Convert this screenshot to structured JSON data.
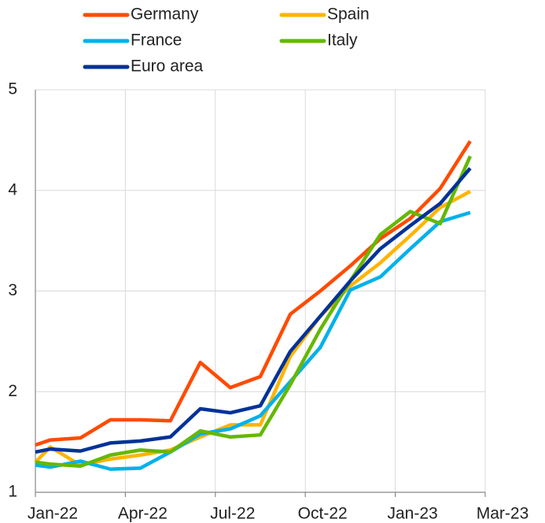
{
  "chart_data": {
    "type": "line",
    "x": [
      0,
      0.5,
      1.5,
      2.5,
      3.5,
      4.5,
      5.5,
      6.5,
      7.5,
      8.5,
      9.5,
      10.5,
      11.5,
      12.5,
      13.5,
      14.5
    ],
    "xlim": [
      0,
      15
    ],
    "xticks": [
      {
        "value": 0,
        "label": "Jan-22"
      },
      {
        "value": 3,
        "label": "Apr-22"
      },
      {
        "value": 6,
        "label": "Jul-22"
      },
      {
        "value": 9,
        "label": "Oct-22"
      },
      {
        "value": 12,
        "label": "Jan-23"
      },
      {
        "value": 15,
        "label": "Mar-23"
      }
    ],
    "ylim": [
      1,
      5
    ],
    "yticks": [
      1,
      2,
      3,
      4,
      5
    ],
    "grid": true,
    "legend": "top",
    "series": [
      {
        "name": "Germany",
        "color": "#ff4b00",
        "values": [
          1.47,
          1.52,
          1.54,
          1.72,
          1.72,
          1.71,
          2.29,
          2.04,
          2.15,
          2.77,
          3.0,
          3.25,
          3.52,
          3.72,
          4.02,
          4.49
        ]
      },
      {
        "name": "Spain",
        "color": "#ffb400",
        "values": [
          1.3,
          1.45,
          1.27,
          1.33,
          1.37,
          1.42,
          1.55,
          1.67,
          1.67,
          2.35,
          2.75,
          3.05,
          3.28,
          3.55,
          3.83,
          3.99
        ]
      },
      {
        "name": "France",
        "color": "#00b1ea",
        "values": [
          1.27,
          1.25,
          1.31,
          1.23,
          1.24,
          1.4,
          1.58,
          1.63,
          1.76,
          2.1,
          2.44,
          3.01,
          3.14,
          3.42,
          3.69,
          3.78
        ]
      },
      {
        "name": "Italy",
        "color": "#65b800",
        "values": [
          1.3,
          1.28,
          1.26,
          1.37,
          1.42,
          1.4,
          1.61,
          1.55,
          1.57,
          2.07,
          2.62,
          3.1,
          3.56,
          3.79,
          3.67,
          4.34
        ]
      },
      {
        "name": "Euro area",
        "color": "#003299",
        "values": [
          1.4,
          1.43,
          1.41,
          1.49,
          1.51,
          1.55,
          1.83,
          1.79,
          1.86,
          2.4,
          2.75,
          3.1,
          3.42,
          3.65,
          3.87,
          4.22
        ]
      }
    ]
  }
}
